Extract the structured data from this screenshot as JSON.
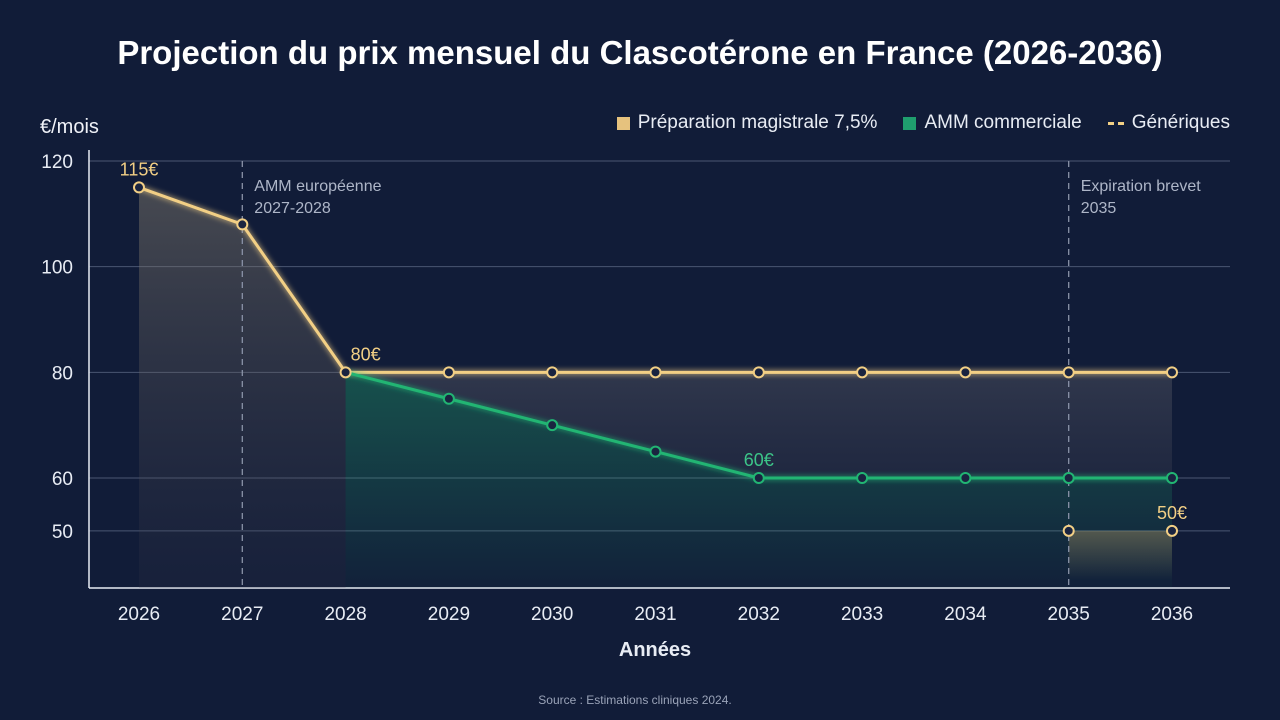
{
  "chart_data": {
    "type": "line",
    "title": "Projection du prix mensuel du Clascotérone en France (2026-2036)",
    "xlabel": "Années",
    "ylabel": "€/mois",
    "x": [
      2026,
      2027,
      2028,
      2029,
      2030,
      2031,
      2032,
      2033,
      2034,
      2035,
      2036
    ],
    "yticks": [
      120,
      100,
      80,
      60,
      50
    ],
    "ylim": [
      39,
      120
    ],
    "grid": true,
    "legend_position": "top-right",
    "series": [
      {
        "name": "Préparation magistrale 7,5%",
        "color": "#f2cf85",
        "style": "solid",
        "x": [
          2026,
          2027,
          2028,
          2029,
          2030,
          2031,
          2032,
          2033,
          2034,
          2035,
          2036
        ],
        "values": [
          115,
          108,
          80,
          80,
          80,
          80,
          80,
          80,
          80,
          80,
          80
        ]
      },
      {
        "name": "AMM commerciale",
        "color": "#22b573",
        "style": "solid",
        "x": [
          2028,
          2029,
          2030,
          2031,
          2032,
          2033,
          2034,
          2035,
          2036
        ],
        "values": [
          80,
          75,
          70,
          65,
          60,
          60,
          60,
          60,
          60
        ]
      },
      {
        "name": "Génériques",
        "color": "#f2cf85",
        "style": "dashed",
        "x": [
          2035,
          2036
        ],
        "values": [
          50,
          50
        ]
      }
    ],
    "data_labels": [
      {
        "text": "115€",
        "x": 2026,
        "y": 115,
        "series": 0
      },
      {
        "text": "80€",
        "x": 2028,
        "y": 80,
        "series": 0
      },
      {
        "text": "60€",
        "x": 2032,
        "y": 60,
        "series": 1
      },
      {
        "text": "50€",
        "x": 2036,
        "y": 50,
        "series": 2
      }
    ],
    "annotations": [
      {
        "x": 2027,
        "lines": [
          "AMM européenne",
          "2027-2028"
        ]
      },
      {
        "x": 2035,
        "lines": [
          "Expiration brevet",
          "2035"
        ]
      }
    ],
    "source": "Source : Estimations cliniques 2024."
  }
}
